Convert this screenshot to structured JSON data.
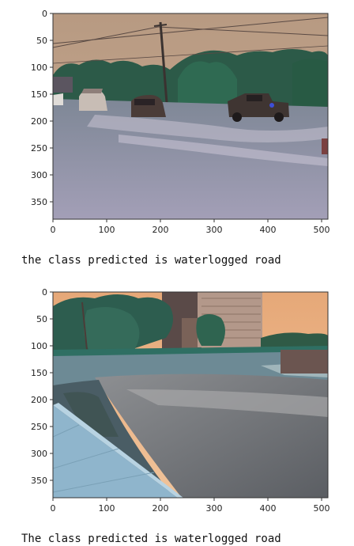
{
  "cells": [
    {
      "axes": {
        "xticks": [
          "0",
          "100",
          "200",
          "300",
          "400",
          "500"
        ],
        "yticks": [
          "0",
          "50",
          "100",
          "150",
          "200",
          "250",
          "300",
          "350"
        ]
      },
      "image_description": "Flooded street with cars and a pickup truck driving through water, trees and power line poles in background",
      "caption": "the class predicted is waterlogged road"
    },
    {
      "axes": {
        "xticks": [
          "0",
          "100",
          "200",
          "300",
          "400",
          "500"
        ],
        "yticks": [
          "0",
          "50",
          "100",
          "150",
          "200",
          "250",
          "300",
          "350"
        ]
      },
      "image_description": "Flooded city street at sunset with sidewalk on left, trees and tall buildings in background",
      "caption": "The class predicted is waterlogged road"
    }
  ]
}
